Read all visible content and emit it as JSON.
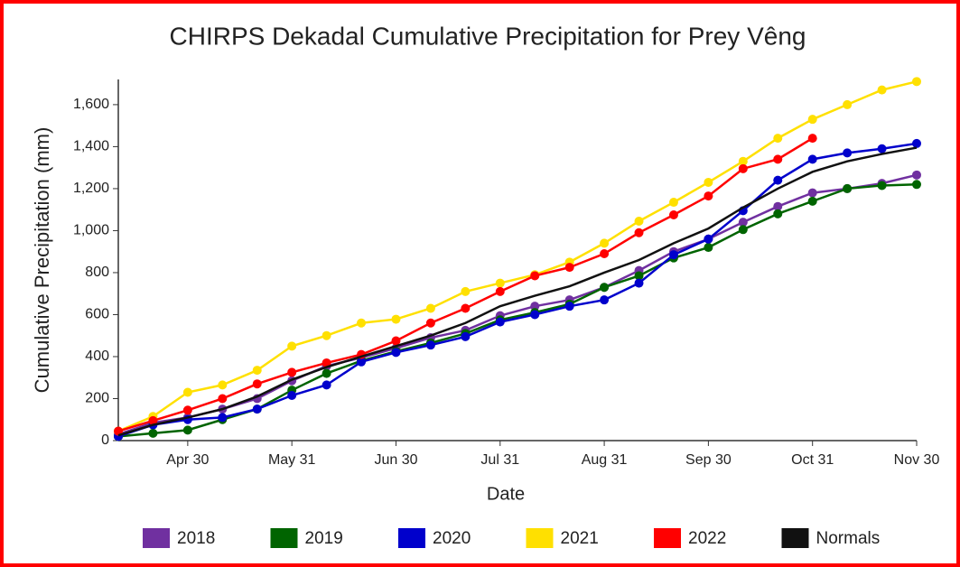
{
  "chart_data": {
    "type": "line",
    "title": "CHIRPS Dekadal Cumulative Precipitation for Prey Vêng",
    "x_label": "Date",
    "y_label": "Cumulative Precipitation (mm)",
    "categories": [
      null,
      null,
      "Apr 30",
      null,
      null,
      "May 31",
      null,
      null,
      "Jun 30",
      null,
      null,
      "Jul 31",
      null,
      null,
      "Aug 31",
      null,
      null,
      "Sep 30",
      null,
      null,
      "Oct 31",
      null,
      null,
      "Nov 30"
    ],
    "ylim": [
      0,
      1720
    ],
    "yticks": [
      0,
      200,
      400,
      600,
      800,
      {
        "value": 1000,
        "label": "1,000"
      },
      {
        "value": 1200,
        "label": "1,200"
      },
      {
        "value": 1400,
        "label": "1,400"
      },
      {
        "value": 1600,
        "label": "1,600"
      }
    ],
    "series": [
      {
        "name": "2018",
        "color": "#7030a0",
        "markers": true,
        "values": [
          30,
          85,
          110,
          150,
          200,
          285,
          355,
          395,
          440,
          490,
          525,
          595,
          640,
          670,
          730,
          810,
          900,
          960,
          1040,
          1115,
          1180,
          1200,
          1225,
          1265
        ]
      },
      {
        "name": "2019",
        "color": "#006400",
        "markers": true,
        "values": [
          20,
          35,
          50,
          100,
          150,
          240,
          320,
          380,
          425,
          465,
          510,
          575,
          610,
          650,
          730,
          785,
          870,
          920,
          1005,
          1080,
          1140,
          1200,
          1215,
          1220
        ]
      },
      {
        "name": "2020",
        "color": "#0000cc",
        "markers": true,
        "values": [
          20,
          75,
          100,
          110,
          150,
          215,
          265,
          375,
          420,
          455,
          495,
          565,
          600,
          640,
          670,
          750,
          885,
          960,
          1095,
          1240,
          1340,
          1370,
          1390,
          1415
        ]
      },
      {
        "name": "2021",
        "color": "#ffe000",
        "markers": true,
        "values": [
          45,
          115,
          230,
          265,
          335,
          450,
          500,
          560,
          578,
          630,
          710,
          750,
          790,
          850,
          940,
          1045,
          1135,
          1230,
          1330,
          1440,
          1530,
          1600,
          1670,
          1710
        ]
      },
      {
        "name": "2022",
        "color": "#ff0000",
        "markers": true,
        "values": [
          45,
          95,
          145,
          200,
          270,
          325,
          370,
          410,
          475,
          560,
          630,
          710,
          785,
          825,
          890,
          990,
          1075,
          1165,
          1295,
          1340,
          1440,
          null,
          null,
          null
        ]
      },
      {
        "name": "Normals",
        "color": "#111111",
        "markers": false,
        "values": [
          25,
          75,
          110,
          150,
          210,
          290,
          350,
          400,
          450,
          500,
          560,
          640,
          690,
          735,
          800,
          860,
          940,
          1010,
          1110,
          1200,
          1280,
          1330,
          1365,
          1395
        ]
      }
    ]
  }
}
